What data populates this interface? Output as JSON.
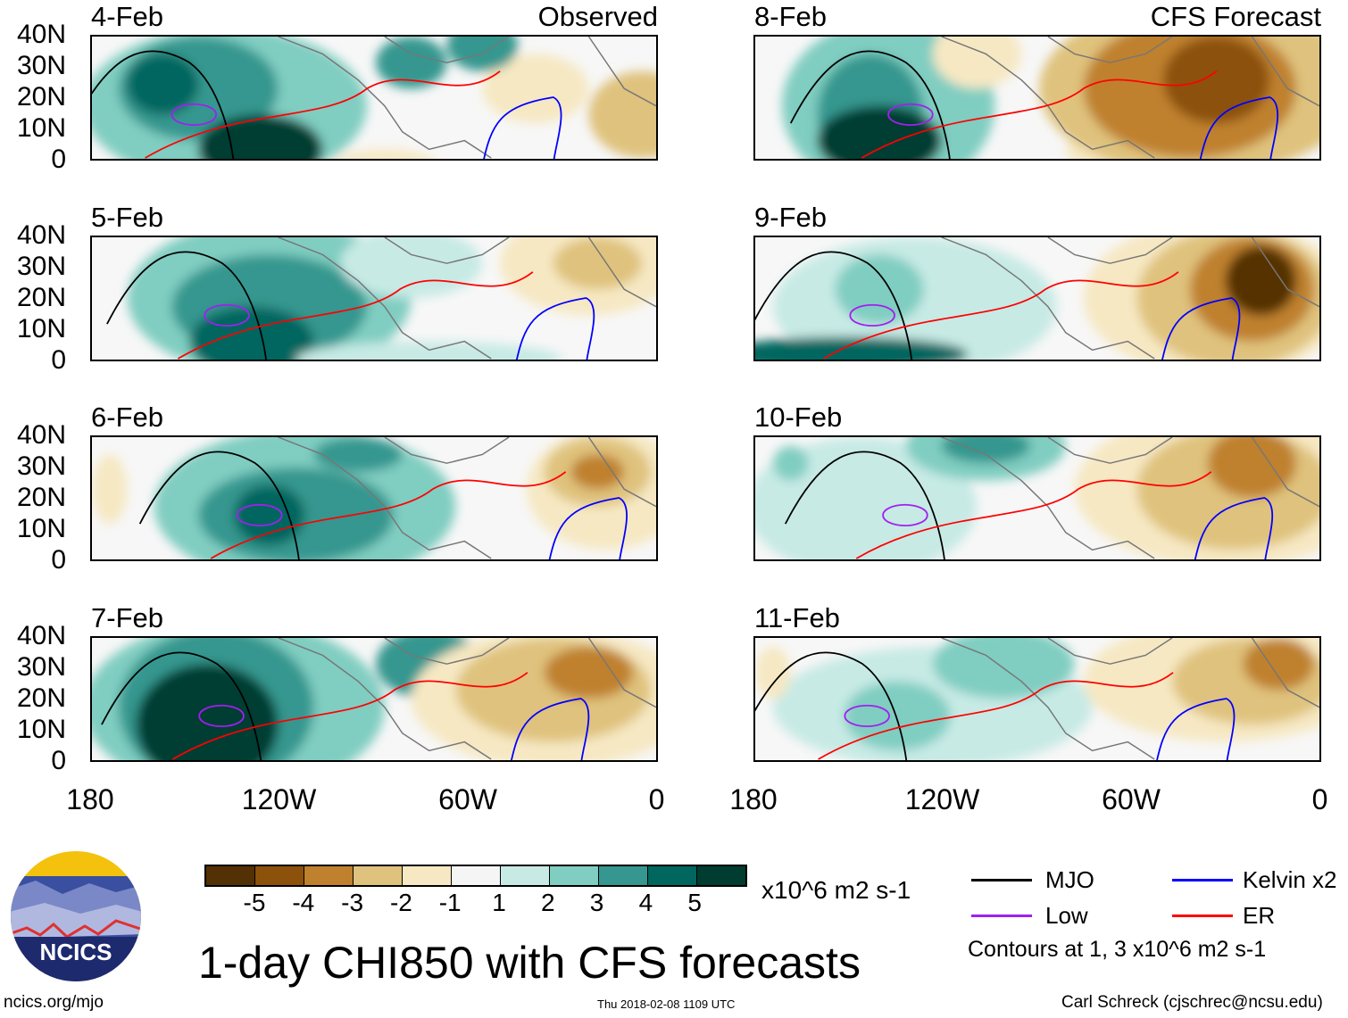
{
  "panels": {
    "left": [
      {
        "date": "4-Feb",
        "label": "Observed"
      },
      {
        "date": "5-Feb",
        "label": ""
      },
      {
        "date": "6-Feb",
        "label": ""
      },
      {
        "date": "7-Feb",
        "label": ""
      }
    ],
    "right": [
      {
        "date": "8-Feb",
        "label": "CFS Forecast"
      },
      {
        "date": "9-Feb",
        "label": ""
      },
      {
        "date": "10-Feb",
        "label": ""
      },
      {
        "date": "11-Feb",
        "label": ""
      }
    ]
  },
  "lat_labels": [
    "40N",
    "30N",
    "20N",
    "10N",
    "0"
  ],
  "lon_labels": [
    "180",
    "120W",
    "60W",
    "0"
  ],
  "colorbar": {
    "colors": [
      "#543005",
      "#8c510a",
      "#bf812d",
      "#dfc27d",
      "#f6e8c3",
      "#f5f5f5",
      "#c7eae5",
      "#80cdc1",
      "#35978f",
      "#01665e",
      "#003c30"
    ],
    "labels": [
      "-5",
      "-4",
      "-3",
      "-2",
      "-1",
      "1",
      "2",
      "3",
      "4",
      "5"
    ],
    "units": "x10^6 m2 s-1"
  },
  "legend": {
    "mjo": {
      "label": "MJO",
      "color": "#000000"
    },
    "kelvin": {
      "label": "Kelvin x2",
      "color": "#0000ff"
    },
    "low": {
      "label": "Low",
      "color": "#a020f0"
    },
    "er": {
      "label": "ER",
      "color": "#ff0000"
    },
    "note": "Contours at 1, 3 x10^6 m2 s-1"
  },
  "title": "1-day CHI850 with CFS forecasts",
  "logo_text": "NCICS",
  "footer": {
    "left": "ncics.org/mjo",
    "center": "Thu 2018-02-08 1109 UTC",
    "right": "Carl Schreck (cjschrec@ncsu.edu)"
  }
}
